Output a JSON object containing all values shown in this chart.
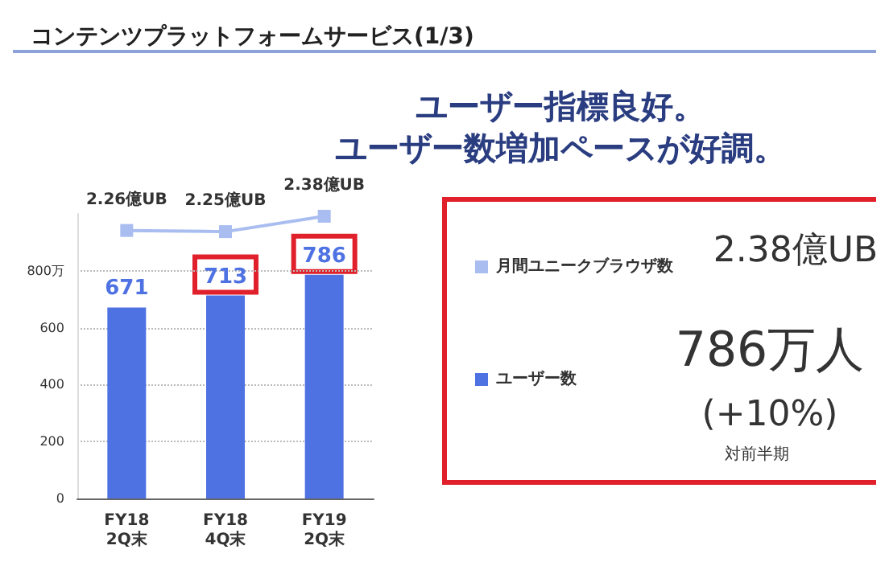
{
  "chart_data": {
    "type": "bar",
    "title": "コンテンツプラットフォームサービス(1/3)",
    "subtitle": "ユーザー指標良好。ユーザー数増加ペースが好調。",
    "categories": [
      "FY18\n2Q末",
      "FY18\n4Q末",
      "FY19\n2Q末"
    ],
    "series": [
      {
        "name": "月間ユニークブラウザ数",
        "type": "line",
        "axis": "y2",
        "color": "#a9bdf0",
        "marker": "square",
        "values": [
          2.26,
          2.25,
          2.38
        ],
        "value_labels": [
          "2.26億UB",
          "2.25億UB",
          "2.38億UB"
        ]
      },
      {
        "name": "ユーザー数",
        "color": "#4f72e3",
        "values": [
          671,
          713,
          786
        ]
      }
    ],
    "data_labels": true,
    "ylim": [
      0,
      1000
    ],
    "y2lim": [
      0,
      2.4
    ],
    "yticks": [
      0,
      200,
      400,
      600,
      {
        "value": 800,
        "label": "800万"
      }
    ],
    "tick_labels": "xy",
    "grid": "y",
    "legend": "right",
    "annotations": [
      "2.38億UB",
      "786万人",
      "(+10%)",
      "対前半期"
    ]
  }
}
